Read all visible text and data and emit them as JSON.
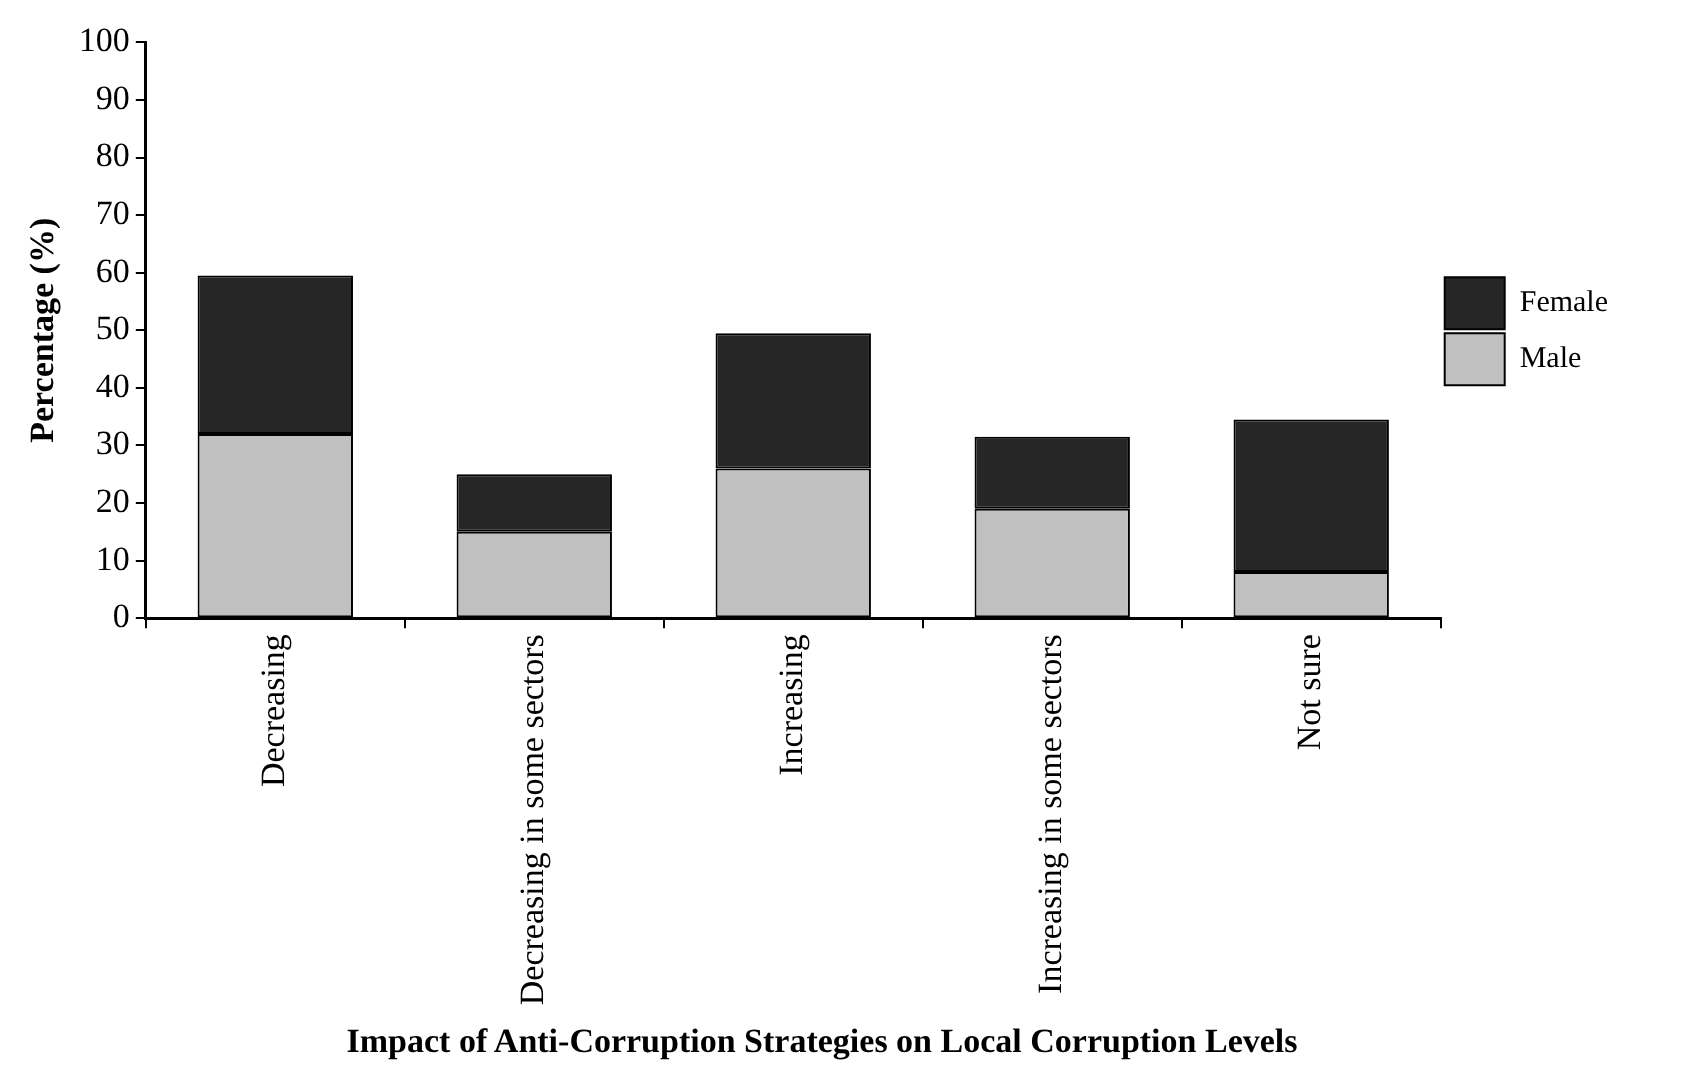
{
  "chart_data": {
    "type": "bar",
    "title": "Impact of Anti-Corruption Strategies on Local Corruption Levels",
    "ylabel": "Percentage (%)",
    "categories": [
      "Decreasing",
      "Decreasing in some sectors",
      "Increasing",
      "Increasing in some sectors",
      "Not sure"
    ],
    "series": [
      {
        "name": "Male",
        "color": "#c0c0c0",
        "values": [
          32,
          15,
          26,
          19,
          8
        ]
      },
      {
        "name": "Female",
        "color": "#262626",
        "values": [
          27.5,
          10,
          23.5,
          12.5,
          26.5
        ]
      }
    ],
    "stacked": true,
    "ylim": [
      0,
      100
    ],
    "yticks": [
      0,
      10,
      20,
      30,
      40,
      50,
      60,
      70,
      80,
      90,
      100
    ],
    "grid": false,
    "legend": "right"
  }
}
